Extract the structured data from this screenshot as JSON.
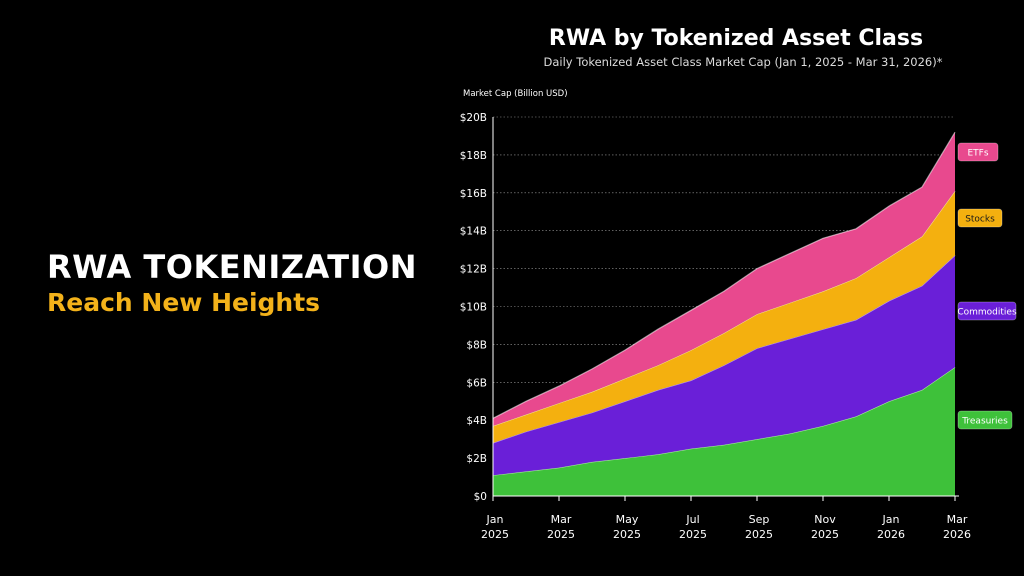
{
  "headline": {
    "line1": "RWA TOKENIZATION",
    "line2": "Reach New Heights"
  },
  "colors": {
    "treasuries": "#3ec13a",
    "commodities": "#6a1fd8",
    "stocks": "#f4b00f",
    "etfs": "#e8498e",
    "headline_accent": "#f3b21a"
  },
  "chart_data": {
    "type": "area",
    "stacked": true,
    "title": "RWA by Tokenized Asset Class",
    "subtitle": "Daily Tokenized Asset Class Market Cap (Jan 1, 2025 - Mar 31, 2026)*",
    "ylabel": "Market Cap (Billion USD)",
    "ylim": [
      0,
      20
    ],
    "yticks": [
      "$0",
      "$2B",
      "$4B",
      "$6B",
      "$8B",
      "$10B",
      "$12B",
      "$14B",
      "$16B",
      "$18B",
      "$20B"
    ],
    "xticks": [
      {
        "month": "Jan",
        "year": "2025"
      },
      {
        "month": "Mar",
        "year": "2025"
      },
      {
        "month": "May",
        "year": "2025"
      },
      {
        "month": "Jul",
        "year": "2025"
      },
      {
        "month": "Sep",
        "year": "2025"
      },
      {
        "month": "Nov",
        "year": "2025"
      },
      {
        "month": "Jan",
        "year": "2026"
      },
      {
        "month": "Mar",
        "year": "2026"
      }
    ],
    "x": [
      "Jan 2025",
      "Feb 2025",
      "Mar 2025",
      "Apr 2025",
      "May 2025",
      "Jun 2025",
      "Jul 2025",
      "Aug 2025",
      "Sep 2025",
      "Oct 2025",
      "Nov 2025",
      "Dec 2025",
      "Jan 2026",
      "Feb 2026",
      "Mar 2026"
    ],
    "grid": true,
    "legend_placement": "right",
    "series": [
      {
        "name": "Treasuries",
        "color": "#3ec13a",
        "values": [
          1.1,
          1.3,
          1.5,
          1.8,
          2.0,
          2.2,
          2.5,
          2.7,
          3.0,
          3.3,
          3.7,
          4.2,
          5.0,
          5.6,
          6.8
        ]
      },
      {
        "name": "Commodities",
        "color": "#6a1fd8",
        "values": [
          1.7,
          2.1,
          2.4,
          2.6,
          3.0,
          3.4,
          3.6,
          4.2,
          4.8,
          5.0,
          5.1,
          5.1,
          5.3,
          5.5,
          5.9
        ]
      },
      {
        "name": "Stocks",
        "color": "#f4b00f",
        "values": [
          0.9,
          0.9,
          1.0,
          1.1,
          1.2,
          1.3,
          1.6,
          1.7,
          1.8,
          1.9,
          2.0,
          2.2,
          2.3,
          2.6,
          3.4
        ]
      },
      {
        "name": "ETFs",
        "color": "#e8498e",
        "values": [
          0.4,
          0.7,
          0.9,
          1.2,
          1.5,
          1.9,
          2.1,
          2.2,
          2.4,
          2.6,
          2.8,
          2.6,
          2.7,
          2.6,
          3.1
        ]
      }
    ]
  }
}
